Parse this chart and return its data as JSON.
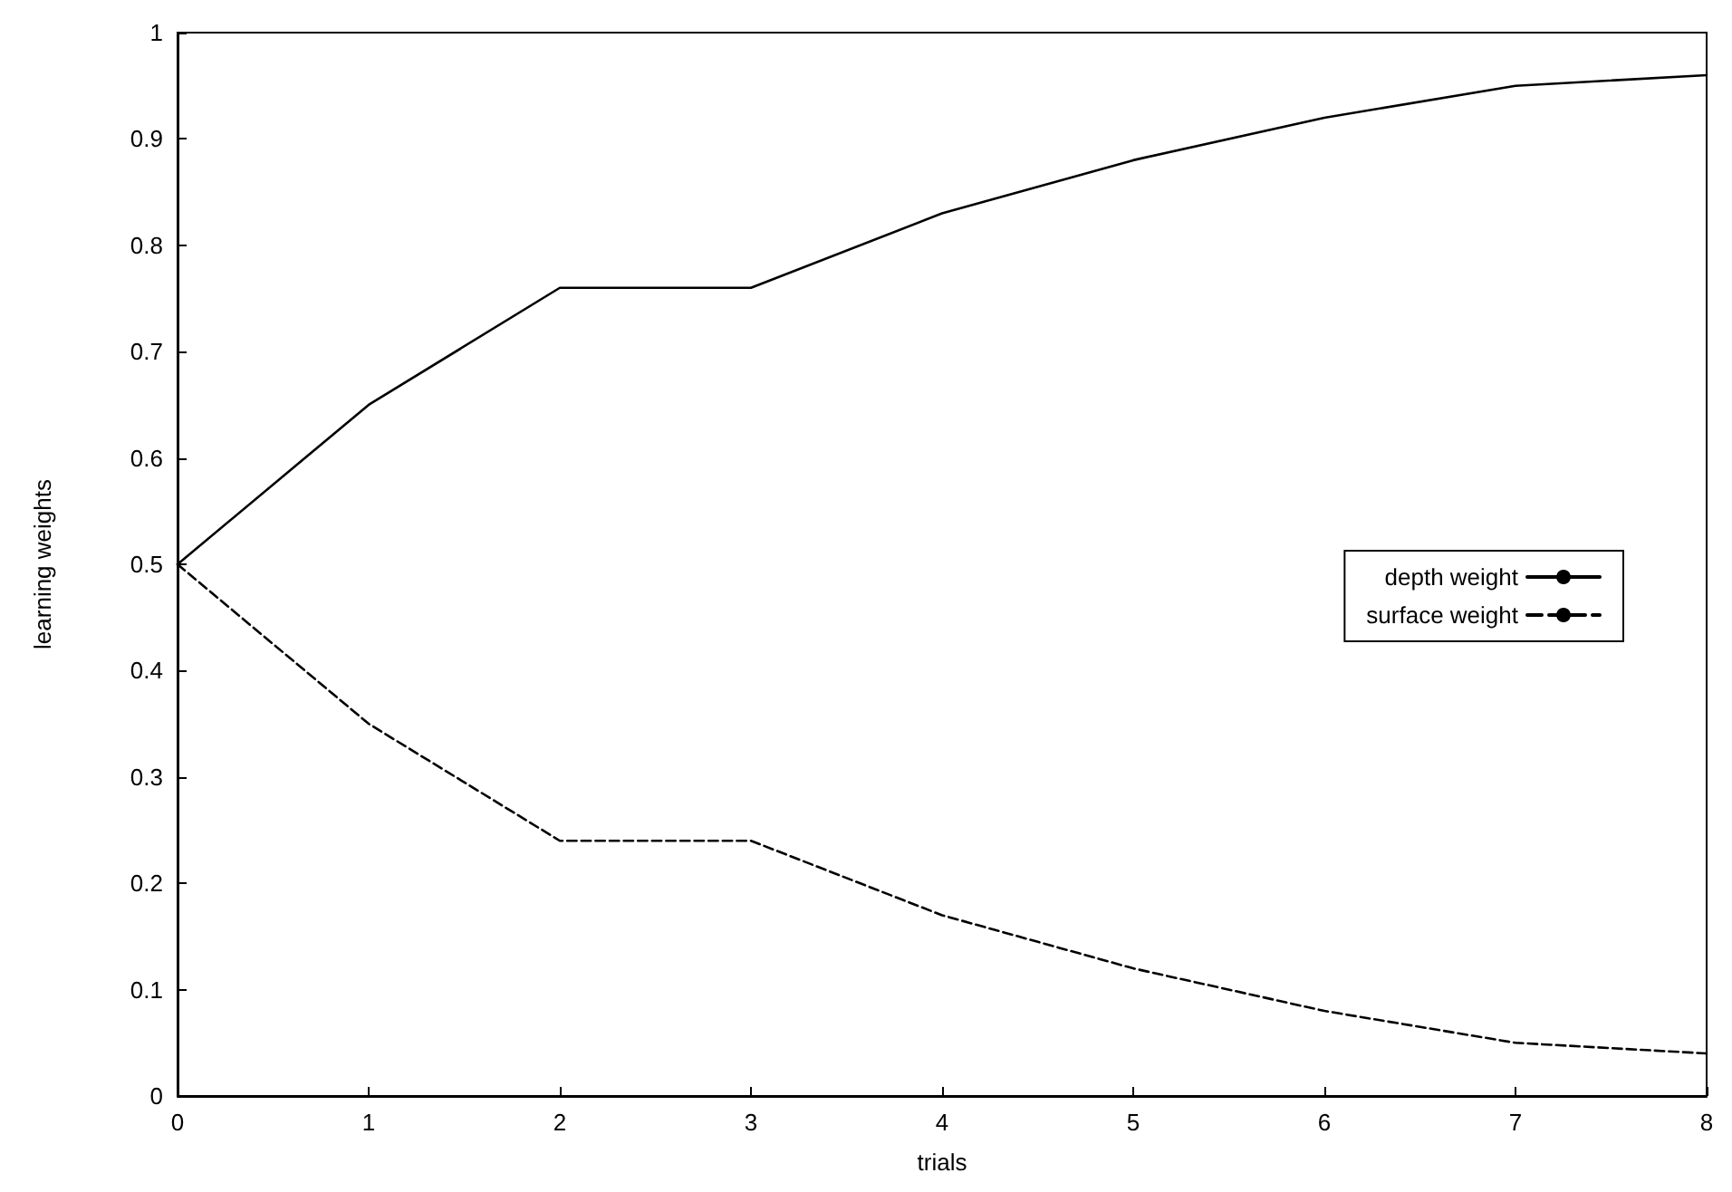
{
  "chart_data": {
    "type": "line",
    "xlabel": "trials",
    "ylabel": "learning weights",
    "x": [
      0,
      1,
      2,
      3,
      4,
      5,
      6,
      7,
      8
    ],
    "series": [
      {
        "name": "depth weight",
        "color": "#000000",
        "line_style": "solid",
        "values": [
          0.5,
          0.65,
          0.76,
          0.76,
          0.83,
          0.88,
          0.92,
          0.95,
          0.96
        ]
      },
      {
        "name": "surface weight",
        "color": "#000000",
        "line_style": "dashed",
        "values": [
          0.5,
          0.35,
          0.24,
          0.24,
          0.17,
          0.12,
          0.08,
          0.05,
          0.04
        ]
      }
    ],
    "xlim": [
      0,
      8
    ],
    "xticks": [
      0,
      1,
      2,
      3,
      4,
      5,
      6,
      7,
      8
    ],
    "ylim": [
      0,
      1
    ],
    "yticks": [
      0,
      0.1,
      0.2,
      0.3,
      0.4,
      0.5,
      0.6,
      0.7,
      0.8,
      0.9,
      1
    ],
    "grid": false,
    "legend": "right",
    "marker": "none"
  }
}
